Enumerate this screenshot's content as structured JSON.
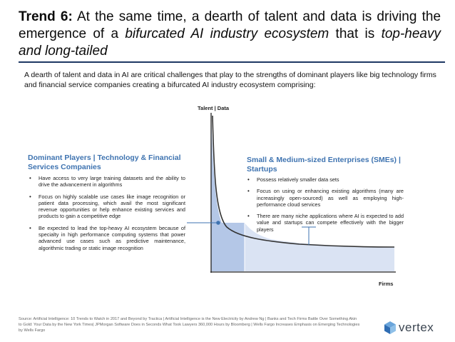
{
  "slide": {
    "title_prefix": "Trend 6:",
    "title_part1": " At the same time, a dearth of talent and data is driving the emergence of a ",
    "title_emph1": "bifurcated AI industry ecosystem",
    "title_part2": " that is ",
    "title_emph2": "top-heavy and long-tailed",
    "intro": "A dearth of talent and data in AI are critical challenges that play to the strengths of dominant players like big technology firms and financial service companies creating a bifurcated AI industry ecosystem comprising:",
    "colors": {
      "rule": "#1f3864",
      "heading": "#3e73b0",
      "dominant_area": "#b4c7e7",
      "sme_area": "#dae3f3",
      "curve": "#333333"
    }
  },
  "chart_data": {
    "type": "area",
    "ylabel": "Talent | Data",
    "xlabel": "Firms",
    "curve_shape": "long-tail decay",
    "segments": [
      {
        "label": "Dominant Players | Technology & Financial Services Companies",
        "color": "#b4c7e7"
      },
      {
        "label": "Small & Medium-sized Enterprises (SMEs) | Startups",
        "color": "#dae3f3"
      }
    ]
  },
  "left_panel": {
    "title": "Dominant Players | Technology & Financial Services Companies",
    "bullets": [
      "Have access to very large training datasets and the ability to drive the advancement in algorithms",
      "Focus on highly scalable use cases like image recognition or patient data processing, which avail the most significant revenue opportunities or help enhance existing services and products to gain a competitive edge",
      "Be expected to lead the top-heavy AI ecosystem because of specialty in high performance computing systems that power advanced use cases such as predictive maintenance, algorithmic trading or static image recognition"
    ]
  },
  "right_panel": {
    "title": "Small & Medium-sized Enterprises (SMEs) | Startups",
    "bullets": [
      "Possess relatively smaller data sets",
      "Focus on using or enhancing existing algorithms (many are increasingly open-sourced) as well as employing high-performance cloud services",
      "There are many niche applications where AI is expected to add value and startups can compete effectively with the bigger players"
    ]
  },
  "footer": {
    "source": "Source: Artificial Intelligence: 10 Trends to Watch in 2017 and Beyond by Tractica | Artificial Intelligence is the New Electricity by Andrew Ng | Banks and Tech Firms Battle Over Something Akin to Gold: Your Data by the New York Times| JPMorgan Software Does in Seconds What Took Lawyers 360,000 Hours by Bloomberg | Wells Fargo Increases Emphasis on Emerging Technologies by Wells Fargo",
    "logo_text": "vertex",
    "logo_icon": "vertex-cube-icon"
  }
}
